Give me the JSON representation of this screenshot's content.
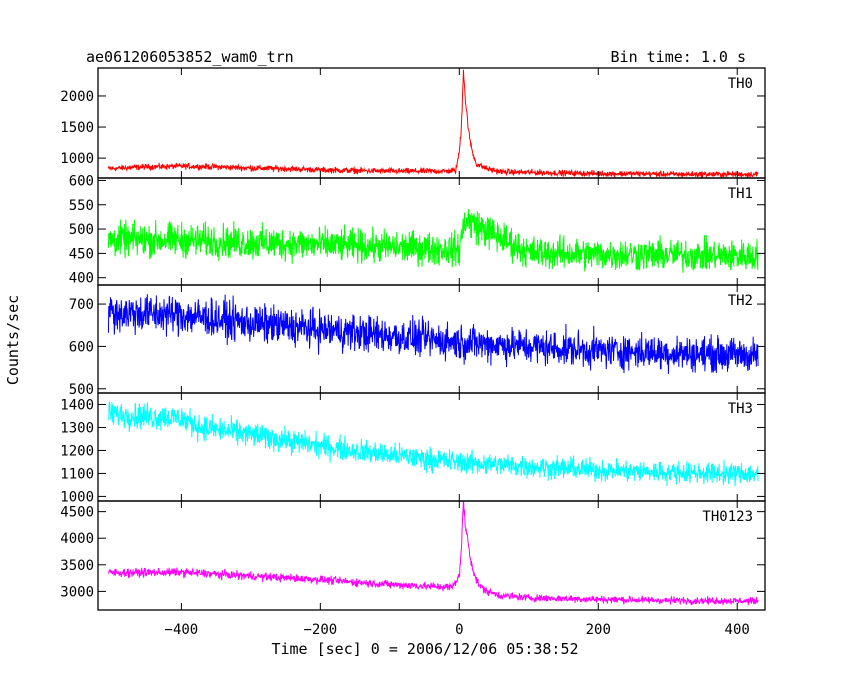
{
  "header": {
    "title": "ae061206053852_wam0_trn",
    "bin_time": "Bin time: 1.0 s"
  },
  "chart_data": {
    "type": "line",
    "title": "ae061206053852_wam0_trn",
    "subtitle": "Bin time: 1.0 s",
    "xlabel": "Time [sec] 0 = 2006/12/06 05:38:52",
    "ylabel": "Counts/sec",
    "xlim": [
      -520,
      440
    ],
    "x_ticks": [
      -400,
      -200,
      0,
      200,
      400
    ],
    "x_tick_labels": [
      "−400",
      "−200",
      "0",
      "200",
      "400"
    ],
    "grid": false,
    "legend": "none",
    "panels": [
      {
        "label": "TH0",
        "color": "#ff0000",
        "ylim": [
          680,
          2450
        ],
        "y_ticks": [
          1000,
          1500,
          2000
        ],
        "series": {
          "x": [
            -505,
            -450,
            -400,
            -350,
            -300,
            -250,
            -200,
            -150,
            -100,
            -50,
            -20,
            -5,
            0,
            3,
            6,
            9,
            12,
            15,
            20,
            25,
            30,
            40,
            60,
            100,
            150,
            200,
            250,
            300,
            350,
            400,
            430
          ],
          "y": [
            830,
            860,
            870,
            860,
            840,
            830,
            810,
            800,
            790,
            790,
            790,
            800,
            1100,
            1500,
            2450,
            1900,
            1600,
            1300,
            1050,
            900,
            880,
            830,
            780,
            770,
            760,
            750,
            750,
            740,
            740,
            740,
            740
          ]
        }
      },
      {
        "label": "TH1",
        "color": "#00ff00",
        "ylim": [
          385,
          605
        ],
        "y_ticks": [
          400,
          450,
          500,
          550,
          600
        ],
        "series": {
          "x": [
            -505,
            -400,
            -300,
            -200,
            -100,
            0,
            8,
            100,
            200,
            300,
            400,
            430
          ],
          "y": [
            478,
            478,
            472,
            468,
            463,
            458,
            520,
            452,
            448,
            447,
            445,
            445
          ]
        }
      },
      {
        "label": "TH2",
        "color": "#0000ff",
        "ylim": [
          490,
          745
        ],
        "y_ticks": [
          500,
          600,
          700
        ],
        "series": {
          "x": [
            -505,
            -400,
            -300,
            -200,
            -100,
            0,
            100,
            200,
            300,
            400,
            430
          ],
          "y": [
            680,
            675,
            655,
            640,
            625,
            610,
            600,
            590,
            585,
            580,
            580
          ]
        }
      },
      {
        "label": "TH3",
        "color": "#00ffff",
        "ylim": [
          980,
          1450
        ],
        "y_ticks": [
          1000,
          1100,
          1200,
          1300,
          1400
        ],
        "series": {
          "x": [
            -505,
            -400,
            -370,
            -300,
            -200,
            -100,
            0,
            100,
            200,
            300,
            400,
            430
          ],
          "y": [
            1360,
            1340,
            1300,
            1270,
            1220,
            1180,
            1150,
            1130,
            1115,
            1105,
            1100,
            1100
          ]
        }
      },
      {
        "label": "TH0123",
        "color": "#ff00ff",
        "ylim": [
          2650,
          4700
        ],
        "y_ticks": [
          3000,
          3500,
          4000,
          4500
        ],
        "series": {
          "x": [
            -505,
            -400,
            -300,
            -200,
            -100,
            -50,
            -10,
            0,
            3,
            6,
            9,
            12,
            15,
            20,
            25,
            30,
            40,
            60,
            100,
            200,
            300,
            400,
            430
          ],
          "y": [
            3350,
            3360,
            3290,
            3220,
            3130,
            3100,
            3080,
            3300,
            3800,
            4700,
            4200,
            4000,
            3700,
            3400,
            3200,
            3100,
            3000,
            2920,
            2880,
            2850,
            2830,
            2820,
            2820
          ]
        }
      }
    ]
  }
}
